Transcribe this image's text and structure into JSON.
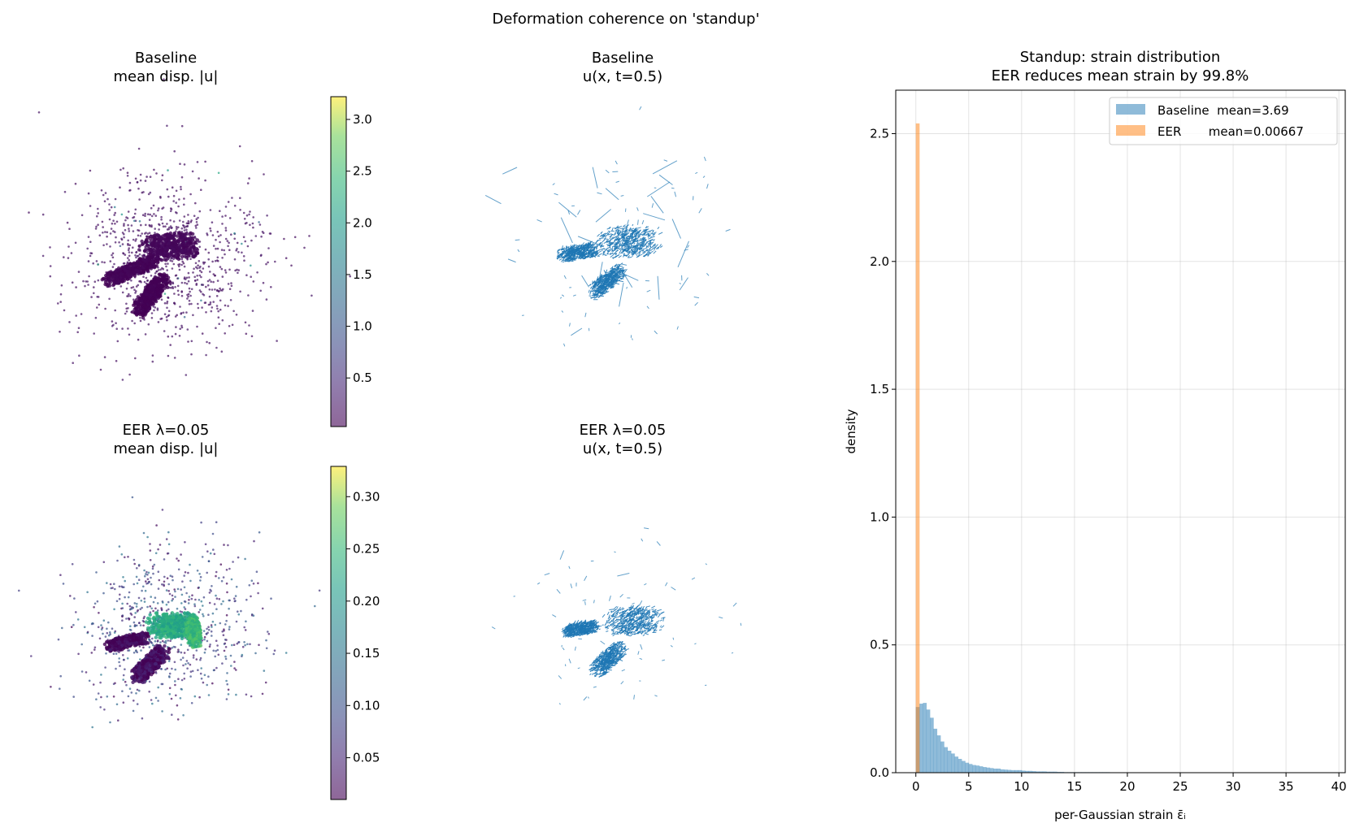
{
  "suptitle": "Deformation coherence on 'standup'",
  "panels": {
    "baseline_disp": {
      "title1": "Baseline",
      "title2": "mean disp. |u|"
    },
    "baseline_quiver": {
      "title1": "Baseline",
      "title2": "u(x, t=0.5)"
    },
    "eer_disp": {
      "title1": "EER λ=0.05",
      "title2": "mean disp. |u|"
    },
    "eer_quiver": {
      "title1": "EER λ=0.05",
      "title2": "u(x, t=0.5)"
    }
  },
  "colorbars": [
    {
      "colormap": "viridis",
      "range": [
        0.03,
        3.22
      ],
      "ticks": [
        0.5,
        1.0,
        1.5,
        2.0,
        2.5,
        3.0
      ],
      "tick_labels": [
        "0.5",
        "1.0",
        "1.5",
        "2.0",
        "2.5",
        "3.0"
      ]
    },
    {
      "colormap": "viridis",
      "range": [
        0.01,
        0.329
      ],
      "ticks": [
        0.05,
        0.1,
        0.15,
        0.2,
        0.25,
        0.3
      ],
      "tick_labels": [
        "0.05",
        "0.10",
        "0.15",
        "0.20",
        "0.25",
        "0.30"
      ]
    }
  ],
  "quiver_color": "#1f77b4",
  "chart_data": {
    "type": "bar",
    "title": "Standup: strain distribution",
    "subtitle": "EER reduces mean strain by 99.8%",
    "xlabel": "per-Gaussian strain   ε̄ᵢ",
    "ylabel": "density",
    "xlim": [
      -1.9,
      40.6
    ],
    "ylim": [
      0,
      2.67
    ],
    "grid": true,
    "legend_position": "top-right",
    "xticks": [
      0,
      5,
      10,
      15,
      20,
      25,
      30,
      35,
      40
    ],
    "xtick_labels": [
      "0",
      "5",
      "10",
      "15",
      "20",
      "25",
      "30",
      "35",
      "40"
    ],
    "yticks": [
      0,
      0.5,
      1.0,
      1.5,
      2.0,
      2.5
    ],
    "ytick_labels": [
      "0.0",
      "0.5",
      "1.0",
      "1.5",
      "2.0",
      "2.5"
    ],
    "bin_start": 0,
    "bin_width": 0.3333,
    "series": [
      {
        "name": "Baseline",
        "legend_label": "Baseline  mean=3.69",
        "color": "#1f77b4",
        "alpha": 0.5,
        "values": [
          0.257,
          0.27,
          0.273,
          0.247,
          0.215,
          0.172,
          0.146,
          0.122,
          0.1,
          0.086,
          0.075,
          0.063,
          0.054,
          0.046,
          0.039,
          0.034,
          0.03,
          0.028,
          0.025,
          0.022,
          0.02,
          0.018,
          0.016,
          0.016,
          0.013,
          0.012,
          0.011,
          0.01,
          0.01,
          0.01,
          0.008,
          0.007,
          0.007,
          0.006,
          0.005,
          0.005,
          0.005,
          0.004,
          0.004,
          0.004,
          0.003,
          0.003,
          0.002,
          0.002,
          0.002,
          0.002,
          0.002,
          0.002,
          0.002,
          0.002,
          0.002,
          0.002,
          0.002,
          0.002,
          0.002,
          0.001
        ]
      },
      {
        "name": "EER",
        "legend_label": "EER       mean=0.00667",
        "color": "#ff7f0e",
        "alpha": 0.5,
        "values": [
          2.54
        ]
      }
    ]
  }
}
